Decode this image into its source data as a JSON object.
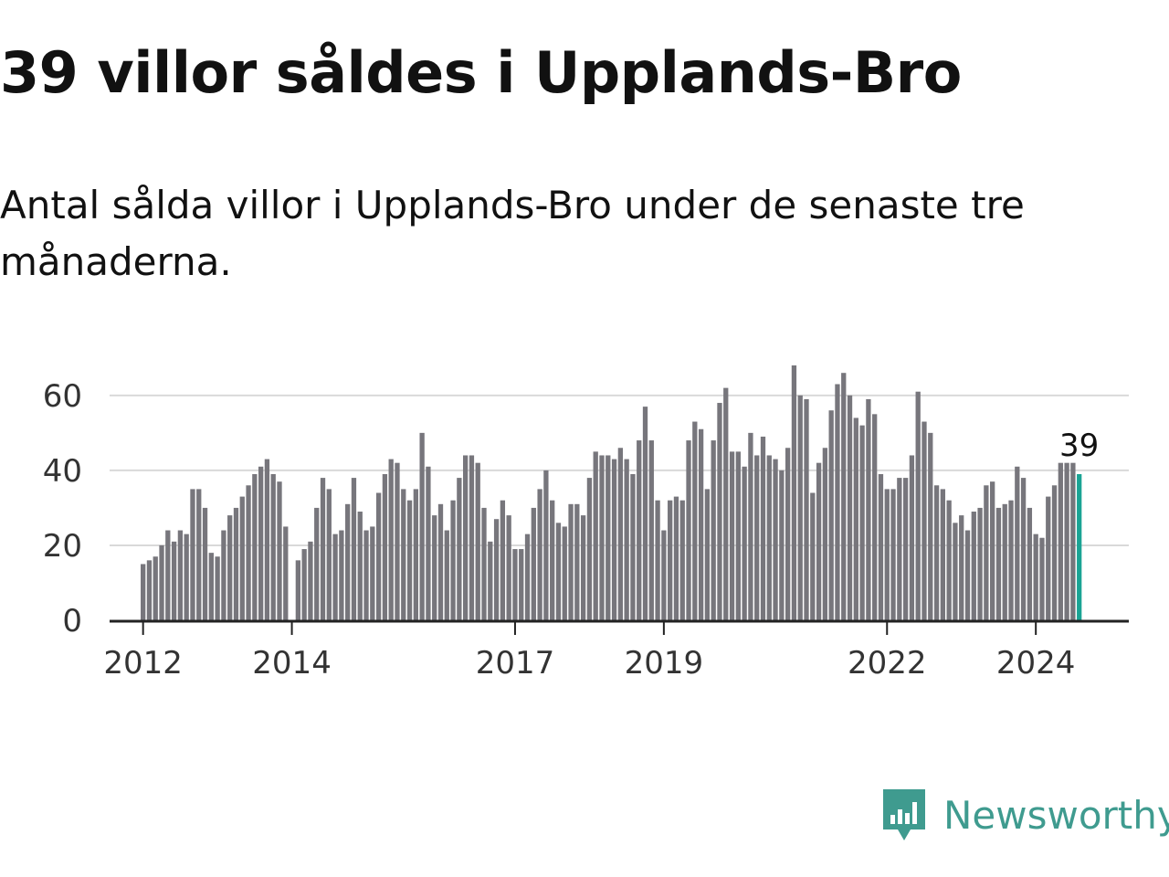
{
  "header": {
    "title": "39 villor såldes i Upplands-Bro",
    "subtitle": "Antal sålda villor i Upplands-Bro under de senaste tre månaderna."
  },
  "chart_data": {
    "type": "bar",
    "title": "39 villor såldes i Upplands-Bro",
    "subtitle": "Antal sålda villor i Upplands-Bro under de senaste tre månaderna.",
    "xlabel": "",
    "ylabel": "",
    "ylim": [
      0,
      68
    ],
    "yticks": [
      0,
      20,
      40,
      60
    ],
    "grid": true,
    "legend": "none",
    "x_start": "2012-01",
    "x_end": "2024-08",
    "x_domain": [
      2011.55,
      2025.25
    ],
    "x_tick_labels": [
      "2012",
      "2014",
      "2017",
      "2019",
      "2022",
      "2024"
    ],
    "x_tick_years": [
      2012,
      2014,
      2017,
      2019,
      2022,
      2024
    ],
    "bar_color": "#77767c",
    "highlight_color": "#1aa394",
    "highlight_label": "39",
    "values": [
      15,
      16,
      17,
      20,
      24,
      21,
      24,
      23,
      35,
      35,
      30,
      18,
      17,
      24,
      28,
      30,
      33,
      36,
      39,
      41,
      43,
      39,
      37,
      25,
      0,
      16,
      19,
      21,
      30,
      38,
      35,
      23,
      24,
      31,
      38,
      29,
      24,
      25,
      34,
      39,
      43,
      42,
      35,
      32,
      35,
      50,
      41,
      28,
      31,
      24,
      32,
      38,
      44,
      44,
      42,
      30,
      21,
      27,
      32,
      28,
      19,
      19,
      23,
      30,
      35,
      40,
      32,
      26,
      25,
      31,
      31,
      28,
      38,
      45,
      44,
      44,
      43,
      46,
      43,
      39,
      48,
      57,
      48,
      32,
      24,
      32,
      33,
      32,
      48,
      53,
      51,
      35,
      48,
      58,
      62,
      45,
      45,
      41,
      50,
      44,
      49,
      44,
      43,
      40,
      46,
      68,
      60,
      59,
      34,
      42,
      46,
      56,
      63,
      66,
      60,
      54,
      52,
      59,
      55,
      39,
      35,
      35,
      38,
      38,
      44,
      61,
      53,
      50,
      36,
      35,
      32,
      26,
      28,
      24,
      29,
      30,
      36,
      37,
      30,
      31,
      32,
      41,
      38,
      30,
      23,
      22,
      33,
      36,
      42,
      42,
      42,
      39
    ]
  },
  "brand": {
    "name": "Newsworthy",
    "color": "#3f9b8f"
  }
}
